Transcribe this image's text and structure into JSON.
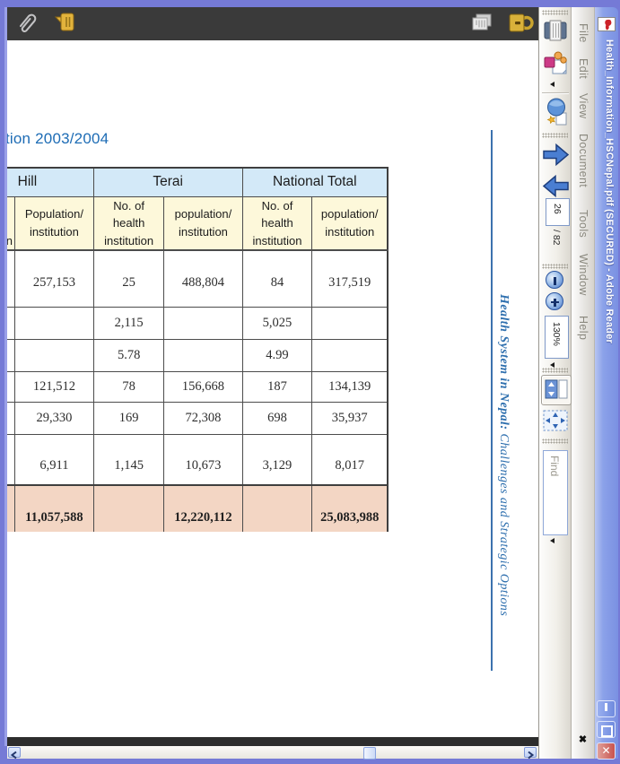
{
  "window": {
    "title": "Health_Information_HSCNepal.pdf (SECURED) - Adobe Reader"
  },
  "menu": {
    "items": [
      "File",
      "Edit",
      "View",
      "Document",
      "Tools",
      "Window",
      "Help"
    ],
    "close_glyph": "✖"
  },
  "toolbar": {
    "page_current": "26",
    "page_separator": "/",
    "page_total": "82",
    "zoom_level": "130%",
    "find_placeholder": "Find"
  },
  "nav_pane": {
    "icons": [
      "paperclip-icon",
      "comment-note-icon",
      "pages-icon",
      "lock-icon"
    ]
  },
  "document": {
    "heading_fragment": "tion 2003/2004",
    "side_caption_bold": "Health System in Nepal:",
    "side_caption_regular": " Challenges and Strategic Options",
    "table": {
      "groups": [
        {
          "label": "Hill",
          "span": 2
        },
        {
          "label": "Terai",
          "span": 2
        },
        {
          "label": "National Total",
          "span": 2
        }
      ],
      "columns": [
        "No. of health institution",
        "Population/ institution",
        "No. of health institution",
        "population/ institution",
        "No. of health institution",
        "population/ institution"
      ],
      "rows": [
        [
          "",
          "257,153",
          "25",
          "488,804",
          "84",
          "317,519"
        ],
        [
          "",
          "",
          "2,115",
          "",
          "5,025",
          ""
        ],
        [
          "",
          "",
          "5.78",
          "",
          "4.99",
          ""
        ],
        [
          "",
          "121,512",
          "78",
          "156,668",
          "187",
          "134,139"
        ],
        [
          "",
          "29,330",
          "169",
          "72,308",
          "698",
          "35,937"
        ],
        [
          "",
          "6,911",
          "1,145",
          "10,673",
          "3,129",
          "8,017"
        ]
      ],
      "total_row": [
        "",
        "11,057,588",
        "",
        "12,220,112",
        "",
        "25,083,988"
      ]
    }
  },
  "colors": {
    "titlebar_blue": "#8ba2e9",
    "frame_purple": "#757ad6",
    "nav_strip_dark": "#3a3a3a",
    "heading_blue": "#1d6cb5",
    "caption_blue": "#2e6fae",
    "table_group_header": "#d3e9f8",
    "table_sub_header": "#fdf8da",
    "table_total": "#f3d6c4"
  }
}
